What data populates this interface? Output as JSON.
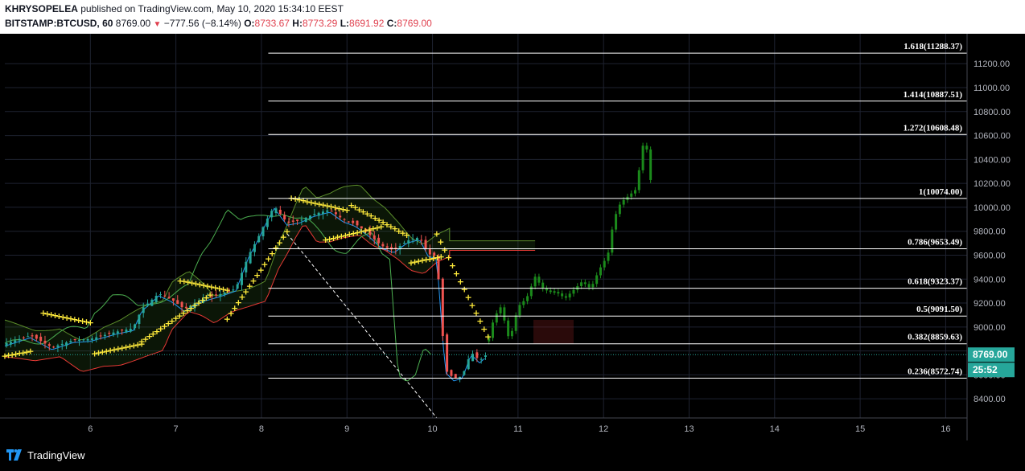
{
  "header": {
    "author": "KHRYSOPELEA",
    "published": " published on TradingView.com, May 10, 2020 15:34:10 EEST",
    "symbol": "BITSTAMP:BTCUSD, 60",
    "last": "8769.00",
    "change_arrow": "▼",
    "change": "−777.56 (−8.14%)",
    "o_label": "O:",
    "o_value": "8733.67",
    "h_label": "H:",
    "h_value": "8773.29",
    "l_label": "L:",
    "l_value": "8691.92",
    "c_label": "C:",
    "c_value": "8769.00"
  },
  "footer": {
    "brand": "TradingView",
    "logo_icon": "tradingview-logo-icon"
  },
  "colors": {
    "background": "#000000",
    "grid": "#1e2230",
    "text": "#b2b5be",
    "fib_line": "#ffffff",
    "up_candle": "#26a69a",
    "down_candle": "#ef5350",
    "projection_candle": "#1b8a1b",
    "sar": "#ffeb3b",
    "cloud_border": "#5b8c2b",
    "kijun": "#e53935",
    "tenkan": "#2196f3",
    "lagging": "#4caf50",
    "current_price_badge": "#26a69a",
    "trendline": "#ffffff"
  },
  "chart_data": {
    "type": "candlestick",
    "symbol": "BITSTAMP:BTCUSD",
    "interval": "60",
    "x_axis": {
      "ticks": [
        6,
        7,
        8,
        9,
        10,
        11,
        12,
        13,
        14,
        15,
        16
      ],
      "range": [
        5.0,
        16.25
      ]
    },
    "y_axis": {
      "ticks": [
        8400,
        8600,
        8800,
        9000,
        9200,
        9400,
        9600,
        9800,
        10000,
        10200,
        10400,
        10600,
        10800,
        11000,
        11200
      ],
      "tick_labels": [
        "8400.00",
        "8600.00",
        "8800.00",
        "9000.00",
        "9200.00",
        "9400.00",
        "9600.00",
        "9800.00",
        "10000.00",
        "10200.00",
        "10400.00",
        "10600.00",
        "10800.00",
        "11000.00",
        "11200.00"
      ],
      "range": [
        8240,
        11450
      ]
    },
    "current_price": {
      "value": 8769.0,
      "label": "8769.00",
      "countdown": "25:52"
    },
    "fibonacci": [
      {
        "ratio": "1.618",
        "price": 11288.37,
        "label": "1.618(11288.37)"
      },
      {
        "ratio": "1.414",
        "price": 10887.51,
        "label": "1.414(10887.51)"
      },
      {
        "ratio": "1.272",
        "price": 10608.48,
        "label": "1.272(10608.48)"
      },
      {
        "ratio": "1",
        "price": 10074.0,
        "label": "1(10074.00)"
      },
      {
        "ratio": "0.786",
        "price": 9653.49,
        "label": "0.786(9653.49)"
      },
      {
        "ratio": "0.618",
        "price": 9323.37,
        "label": "0.618(9323.37)"
      },
      {
        "ratio": "0.5",
        "price": 9091.5,
        "label": "0.5(9091.50)"
      },
      {
        "ratio": "0.382",
        "price": 8859.63,
        "label": "0.382(8859.63)"
      },
      {
        "ratio": "0.236",
        "price": 8572.74,
        "label": "0.236(8572.74)"
      }
    ],
    "fib_x_start": 8.08,
    "price_path": [
      [
        5.0,
        8860
      ],
      [
        5.3,
        8930
      ],
      [
        5.55,
        8830
      ],
      [
        5.8,
        8890
      ],
      [
        6.0,
        8900
      ],
      [
        6.3,
        8960
      ],
      [
        6.5,
        8990
      ],
      [
        6.6,
        9150
      ],
      [
        6.8,
        9280
      ],
      [
        6.95,
        9230
      ],
      [
        7.1,
        9150
      ],
      [
        7.3,
        9230
      ],
      [
        7.5,
        9270
      ],
      [
        7.7,
        9320
      ],
      [
        7.85,
        9600
      ],
      [
        7.95,
        9730
      ],
      [
        8.05,
        9880
      ],
      [
        8.15,
        10010
      ],
      [
        8.3,
        9870
      ],
      [
        8.45,
        9890
      ],
      [
        8.6,
        9940
      ],
      [
        8.8,
        9980
      ],
      [
        8.95,
        9900
      ],
      [
        9.1,
        9860
      ],
      [
        9.25,
        9780
      ],
      [
        9.4,
        9680
      ],
      [
        9.55,
        9640
      ],
      [
        9.7,
        9720
      ],
      [
        9.85,
        9750
      ],
      [
        9.95,
        9610
      ],
      [
        10.05,
        9590
      ],
      [
        10.15,
        8640
      ],
      [
        10.25,
        8570
      ],
      [
        10.35,
        8590
      ],
      [
        10.45,
        8790
      ],
      [
        10.55,
        8720
      ],
      [
        10.63,
        8769
      ]
    ],
    "projection_path": [
      [
        10.65,
        8880
      ],
      [
        10.72,
        9080
      ],
      [
        10.8,
        9170
      ],
      [
        10.9,
        8880
      ],
      [
        11.0,
        9170
      ],
      [
        11.1,
        9240
      ],
      [
        11.2,
        9420
      ],
      [
        11.3,
        9310
      ],
      [
        11.45,
        9290
      ],
      [
        11.55,
        9240
      ],
      [
        11.65,
        9310
      ],
      [
        11.75,
        9380
      ],
      [
        11.85,
        9320
      ],
      [
        11.95,
        9480
      ],
      [
        12.05,
        9600
      ],
      [
        12.12,
        9900
      ],
      [
        12.2,
        10040
      ],
      [
        12.3,
        10100
      ],
      [
        12.38,
        10150
      ],
      [
        12.47,
        10560
      ],
      [
        12.52,
        10450
      ],
      [
        12.57,
        10080
      ]
    ],
    "sar_segments": [
      {
        "x": [
          5.0,
          5.3
        ],
        "y": [
          8760,
          8800
        ]
      },
      {
        "x": [
          5.45,
          6.0
        ],
        "y": [
          9120,
          9040
        ]
      },
      {
        "x": [
          6.05,
          6.6
        ],
        "y": [
          8780,
          8860
        ]
      },
      {
        "x": [
          6.6,
          7.4
        ],
        "y": [
          8880,
          9270
        ]
      },
      {
        "x": [
          7.05,
          7.6
        ],
        "y": [
          9390,
          9310
        ]
      },
      {
        "x": [
          7.6,
          8.3
        ],
        "y": [
          9070,
          9800
        ]
      },
      {
        "x": [
          8.35,
          9.0
        ],
        "y": [
          10080,
          9980
        ]
      },
      {
        "x": [
          8.75,
          9.4
        ],
        "y": [
          9730,
          9840
        ]
      },
      {
        "x": [
          9.05,
          9.7
        ],
        "y": [
          10020,
          9770
        ]
      },
      {
        "x": [
          9.75,
          10.1
        ],
        "y": [
          9540,
          9590
        ]
      },
      {
        "x": [
          10.05,
          10.65
        ],
        "y": [
          9780,
          8920
        ]
      }
    ],
    "trendline": {
      "x": [
        8.3,
        10.05
      ],
      "y": [
        9780,
        8240
      ]
    },
    "current_time": 10.63
  }
}
